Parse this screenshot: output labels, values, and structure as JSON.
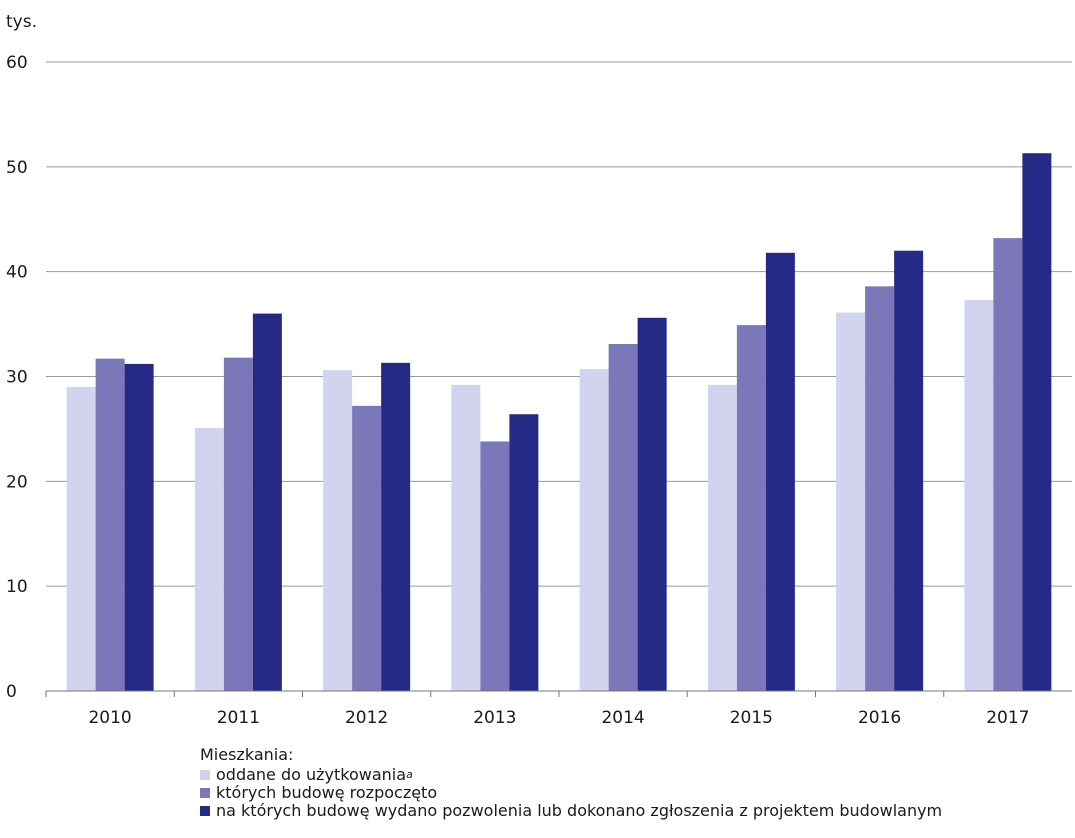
{
  "chart_data": {
    "type": "bar",
    "unit_label": "tys.",
    "categories": [
      "2010",
      "2011",
      "2012",
      "2013",
      "2014",
      "2015",
      "2016",
      "2017"
    ],
    "series": [
      {
        "name": "oddane do użytkowania",
        "superscript": "a",
        "color": "#d2d3ee",
        "values": [
          29.0,
          25.1,
          30.6,
          29.2,
          30.7,
          29.2,
          36.1,
          37.3
        ]
      },
      {
        "name": "których budowę rozpoczęto",
        "color": "#7b77b8",
        "values": [
          31.7,
          31.8,
          27.2,
          23.8,
          33.1,
          34.9,
          38.6,
          43.2
        ]
      },
      {
        "name": "na których budowę wydano pozwolenia lub dokonano zgłoszenia z projektem budowlanym",
        "color": "#262a87",
        "values": [
          31.2,
          36.0,
          31.3,
          26.4,
          35.6,
          41.8,
          42.0,
          51.3
        ]
      }
    ],
    "ylim": [
      0,
      60
    ],
    "yticks": [
      "0",
      "10",
      "20",
      "30",
      "40",
      "50",
      "60"
    ],
    "grid": true,
    "legend_title": "Mieszkania:",
    "legend_position": "bottom"
  }
}
